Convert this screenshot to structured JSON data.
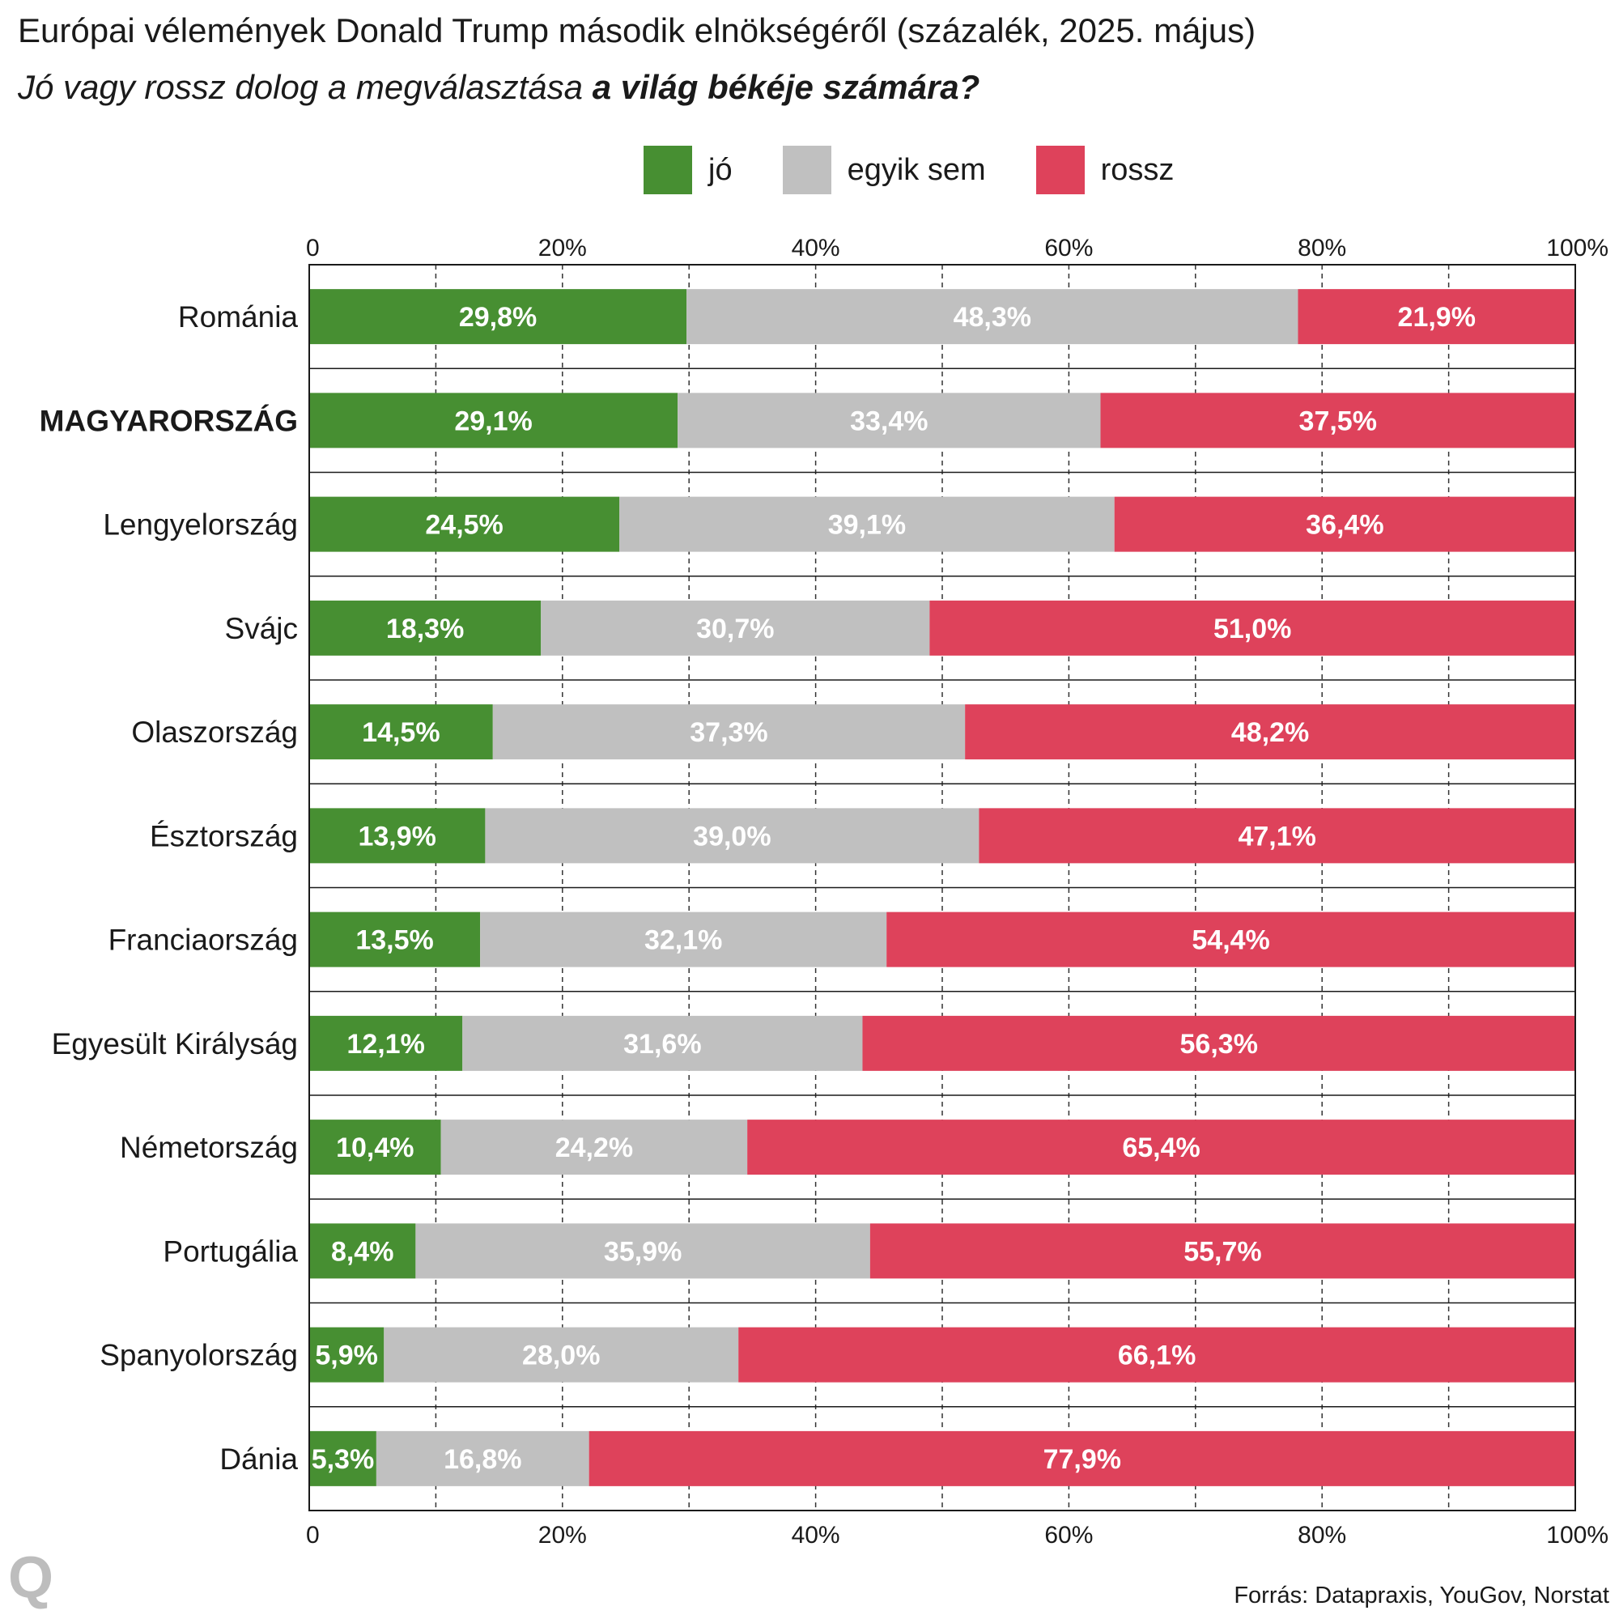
{
  "header": {
    "title": "Európai vélemények Donald Trump második elnökségéről (százalék, 2025. május)",
    "subtitle_plain": "Jó vagy rossz dolog a megválasztása ",
    "subtitle_bold": "a világ békéje számára?"
  },
  "legend": [
    {
      "label": "jó",
      "color": "#478f32"
    },
    {
      "label": "egyik sem",
      "color": "#c0c0c0"
    },
    {
      "label": "rossz",
      "color": "#de425b"
    }
  ],
  "footer": {
    "logo": "Q",
    "source": "Forrás: Datapraxis, YouGov, Norstat"
  },
  "chart_data": {
    "type": "bar",
    "orientation": "horizontal",
    "stacked": true,
    "categories": [
      "Románia",
      "MAGYARORSZÁG",
      "Lengyelország",
      "Svájc",
      "Olaszország",
      "Észtország",
      "Franciaország",
      "Egyesült Királyság",
      "Németország",
      "Portugália",
      "Spanyolország",
      "Dánia"
    ],
    "highlighted_category": "MAGYARORSZÁG",
    "series": [
      {
        "name": "jó",
        "color": "#478f32",
        "values": [
          29.8,
          29.1,
          24.5,
          18.3,
          14.5,
          13.9,
          13.5,
          12.1,
          10.4,
          8.4,
          5.9,
          5.3
        ],
        "labels": [
          "29,8%",
          "29,1%",
          "24,5%",
          "18,3%",
          "14,5%",
          "13,9%",
          "13,5%",
          "12,1%",
          "10,4%",
          "8,4%",
          "5,9%",
          "5,3%"
        ]
      },
      {
        "name": "egyik sem",
        "color": "#c0c0c0",
        "values": [
          48.3,
          33.4,
          39.1,
          30.7,
          37.3,
          39.0,
          32.1,
          31.6,
          24.2,
          35.9,
          28.0,
          16.8
        ],
        "labels": [
          "48,3%",
          "33,4%",
          "39,1%",
          "30,7%",
          "37,3%",
          "39,0%",
          "32,1%",
          "31,6%",
          "24,2%",
          "35,9%",
          "28,0%",
          "16,8%"
        ]
      },
      {
        "name": "rossz",
        "color": "#de425b",
        "values": [
          21.9,
          37.5,
          36.4,
          51.0,
          48.2,
          47.1,
          54.4,
          56.3,
          65.4,
          55.7,
          66.1,
          77.9
        ],
        "labels": [
          "21,9%",
          "37,5%",
          "36,4%",
          "51,0%",
          "48,2%",
          "47,1%",
          "54,4%",
          "56,3%",
          "65,4%",
          "55,7%",
          "66,1%",
          "77,9%"
        ]
      }
    ],
    "xlim": [
      0,
      100
    ],
    "x_ticks": [
      0,
      20,
      40,
      60,
      80,
      100
    ],
    "x_tick_labels": [
      "0",
      "20%",
      "40%",
      "60%",
      "80%",
      "100%"
    ],
    "x_axis_position": "top and bottom",
    "grid": "vertical dashed every 10%",
    "legend_position": "top"
  }
}
